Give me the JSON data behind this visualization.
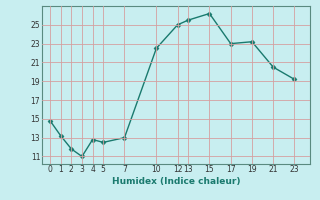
{
  "x": [
    0,
    1,
    2,
    3,
    4,
    5,
    7,
    10,
    12,
    13,
    15,
    17,
    19,
    21,
    23
  ],
  "y": [
    14.8,
    13.2,
    11.8,
    11.0,
    12.8,
    12.5,
    13.0,
    22.5,
    25.0,
    25.5,
    26.2,
    23.0,
    23.2,
    20.5,
    19.2
  ],
  "line_color": "#1a7a6e",
  "marker": "D",
  "marker_size": 2.5,
  "bg_color": "#c8eef0",
  "grid_color": "#b0c8c8",
  "xlabel": "Humidex (Indice chaleur)",
  "xticks": [
    0,
    1,
    2,
    3,
    4,
    5,
    7,
    10,
    12,
    13,
    15,
    17,
    19,
    21,
    23
  ],
  "yticks": [
    11,
    13,
    15,
    17,
    19,
    21,
    23,
    25
  ],
  "xlim": [
    -0.8,
    24.5
  ],
  "ylim": [
    10.2,
    27.0
  ]
}
